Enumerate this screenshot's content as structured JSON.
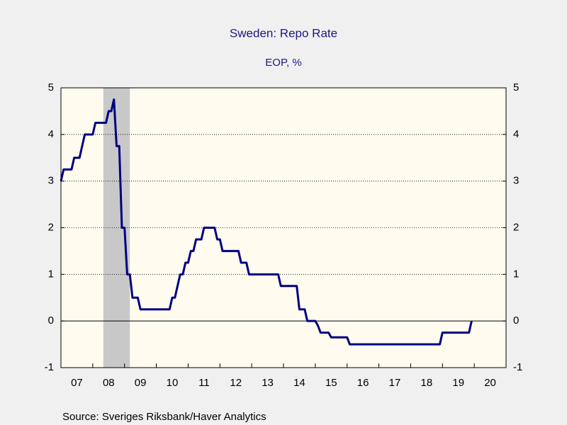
{
  "chart_data": {
    "type": "line",
    "title": "Sweden: Repo Rate",
    "subtitle": "EOP, %",
    "source": "Source:  Sveriges Riksbank/Haver Analytics",
    "x": [
      "2007-01",
      "2007-02",
      "2007-03",
      "2007-04",
      "2007-05",
      "2007-06",
      "2007-07",
      "2007-08",
      "2007-09",
      "2007-10",
      "2007-11",
      "2007-12",
      "2008-01",
      "2008-02",
      "2008-03",
      "2008-04",
      "2008-05",
      "2008-06",
      "2008-07",
      "2008-08",
      "2008-09",
      "2008-10",
      "2008-11",
      "2008-12",
      "2009-01",
      "2009-02",
      "2009-03",
      "2009-04",
      "2009-05",
      "2009-06",
      "2009-07",
      "2009-08",
      "2009-09",
      "2009-10",
      "2009-11",
      "2009-12",
      "2010-01",
      "2010-02",
      "2010-03",
      "2010-04",
      "2010-05",
      "2010-06",
      "2010-07",
      "2010-08",
      "2010-09",
      "2010-10",
      "2010-11",
      "2010-12",
      "2011-01",
      "2011-02",
      "2011-03",
      "2011-04",
      "2011-05",
      "2011-06",
      "2011-07",
      "2011-08",
      "2011-09",
      "2011-10",
      "2011-11",
      "2011-12",
      "2012-01",
      "2012-02",
      "2012-03",
      "2012-04",
      "2012-05",
      "2012-06",
      "2012-07",
      "2012-08",
      "2012-09",
      "2012-10",
      "2012-11",
      "2012-12",
      "2013-01",
      "2013-02",
      "2013-03",
      "2013-04",
      "2013-05",
      "2013-06",
      "2013-07",
      "2013-08",
      "2013-09",
      "2013-10",
      "2013-11",
      "2013-12",
      "2014-01",
      "2014-02",
      "2014-03",
      "2014-04",
      "2014-05",
      "2014-06",
      "2014-07",
      "2014-08",
      "2014-09",
      "2014-10",
      "2014-11",
      "2014-12",
      "2015-01",
      "2015-02",
      "2015-03",
      "2015-04",
      "2015-05",
      "2015-06",
      "2015-07",
      "2015-08",
      "2015-09",
      "2015-10",
      "2015-11",
      "2015-12",
      "2016-01",
      "2016-02",
      "2016-03",
      "2016-04",
      "2016-05",
      "2016-06",
      "2016-07",
      "2016-08",
      "2016-09",
      "2016-10",
      "2016-11",
      "2016-12",
      "2017-01",
      "2017-02",
      "2017-03",
      "2017-04",
      "2017-05",
      "2017-06",
      "2017-07",
      "2017-08",
      "2017-09",
      "2017-10",
      "2017-11",
      "2017-12",
      "2018-01",
      "2018-02",
      "2018-03",
      "2018-04",
      "2018-05",
      "2018-06",
      "2018-07",
      "2018-08",
      "2018-09",
      "2018-10",
      "2018-11",
      "2018-12",
      "2019-01",
      "2019-02",
      "2019-03",
      "2019-04",
      "2019-05",
      "2019-06",
      "2019-07",
      "2019-08",
      "2019-09",
      "2019-10",
      "2019-11",
      "2019-12"
    ],
    "series": [
      {
        "name": "Repo Rate",
        "color": "#000080",
        "values": [
          3.0,
          3.25,
          3.25,
          3.25,
          3.25,
          3.5,
          3.5,
          3.5,
          3.75,
          4.0,
          4.0,
          4.0,
          4.0,
          4.25,
          4.25,
          4.25,
          4.25,
          4.25,
          4.5,
          4.5,
          4.75,
          3.75,
          3.75,
          2.0,
          2.0,
          1.0,
          1.0,
          0.5,
          0.5,
          0.5,
          0.25,
          0.25,
          0.25,
          0.25,
          0.25,
          0.25,
          0.25,
          0.25,
          0.25,
          0.25,
          0.25,
          0.25,
          0.5,
          0.5,
          0.75,
          1.0,
          1.0,
          1.25,
          1.25,
          1.5,
          1.5,
          1.75,
          1.75,
          1.75,
          2.0,
          2.0,
          2.0,
          2.0,
          2.0,
          1.75,
          1.75,
          1.5,
          1.5,
          1.5,
          1.5,
          1.5,
          1.5,
          1.5,
          1.25,
          1.25,
          1.25,
          1.0,
          1.0,
          1.0,
          1.0,
          1.0,
          1.0,
          1.0,
          1.0,
          1.0,
          1.0,
          1.0,
          1.0,
          0.75,
          0.75,
          0.75,
          0.75,
          0.75,
          0.75,
          0.75,
          0.25,
          0.25,
          0.25,
          0.0,
          0.0,
          0.0,
          0.0,
          -0.1,
          -0.25,
          -0.25,
          -0.25,
          -0.25,
          -0.35,
          -0.35,
          -0.35,
          -0.35,
          -0.35,
          -0.35,
          -0.35,
          -0.5,
          -0.5,
          -0.5,
          -0.5,
          -0.5,
          -0.5,
          -0.5,
          -0.5,
          -0.5,
          -0.5,
          -0.5,
          -0.5,
          -0.5,
          -0.5,
          -0.5,
          -0.5,
          -0.5,
          -0.5,
          -0.5,
          -0.5,
          -0.5,
          -0.5,
          -0.5,
          -0.5,
          -0.5,
          -0.5,
          -0.5,
          -0.5,
          -0.5,
          -0.5,
          -0.5,
          -0.5,
          -0.5,
          -0.5,
          -0.5,
          -0.25,
          -0.25,
          -0.25,
          -0.25,
          -0.25,
          -0.25,
          -0.25,
          -0.25,
          -0.25,
          -0.25,
          -0.25,
          0.0
        ]
      }
    ],
    "shaded_periods": [
      {
        "start": "2008-05",
        "end": "2009-03"
      }
    ],
    "xlim": [
      "2007-01",
      "2021-01"
    ],
    "xticks": [
      {
        "value": "2007-01",
        "label": "07"
      },
      {
        "value": "2008-01",
        "label": "08"
      },
      {
        "value": "2009-01",
        "label": "09"
      },
      {
        "value": "2010-01",
        "label": "10"
      },
      {
        "value": "2011-01",
        "label": "11"
      },
      {
        "value": "2012-01",
        "label": "12"
      },
      {
        "value": "2013-01",
        "label": "13"
      },
      {
        "value": "2014-01",
        "label": "14"
      },
      {
        "value": "2015-01",
        "label": "15"
      },
      {
        "value": "2016-01",
        "label": "16"
      },
      {
        "value": "2017-01",
        "label": "17"
      },
      {
        "value": "2018-01",
        "label": "18"
      },
      {
        "value": "2019-01",
        "label": "19"
      },
      {
        "value": "2020-01",
        "label": "20"
      }
    ],
    "ylim": [
      -1,
      5
    ],
    "yticks": [
      -1,
      0,
      1,
      2,
      3,
      4,
      5
    ],
    "y2lim": [
      -1,
      5
    ],
    "y2ticks": [
      -1,
      0,
      1,
      2,
      3,
      4,
      5
    ],
    "grid": true
  }
}
